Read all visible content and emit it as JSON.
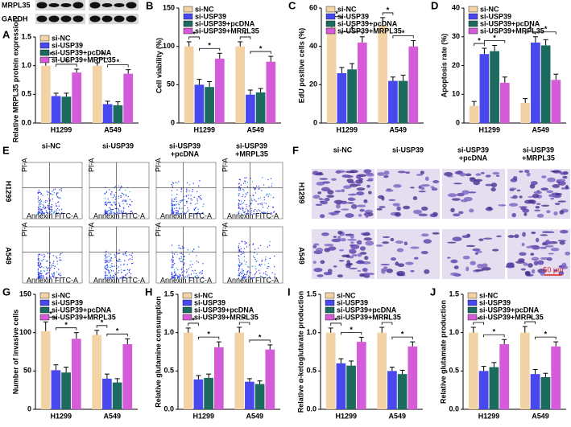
{
  "chart_data": [
    {
      "type": "bar",
      "panel": "A",
      "ylabel": "Relative MRPL35 protein expression",
      "categories": [
        "H1299",
        "A549"
      ],
      "series": [
        {
          "name": "si-NC",
          "color": "#f3d3a6",
          "values": [
            1.0,
            1.0
          ],
          "errors": [
            0.06,
            0.05
          ]
        },
        {
          "name": "si-USP39",
          "color": "#4848ee",
          "values": [
            0.47,
            0.33
          ],
          "errors": [
            0.05,
            0.05
          ]
        },
        {
          "name": "si-USP39+pcDNA",
          "color": "#1d6b5f",
          "values": [
            0.46,
            0.31
          ],
          "errors": [
            0.06,
            0.06
          ]
        },
        {
          "name": "si-USP39+MRPL35",
          "color": "#d45cd9",
          "values": [
            0.88,
            0.86
          ],
          "errors": [
            0.06,
            0.07
          ]
        }
      ],
      "ylim": [
        0,
        1.5
      ],
      "yticks": [
        {
          "value": 0,
          "label": "0.0"
        },
        {
          "value": 0.5,
          "label": "0.5"
        },
        {
          "value": 1,
          "label": "1.0"
        },
        {
          "value": 1.5,
          "label": "1.5"
        }
      ],
      "annotations": [
        "*",
        "*",
        "*",
        "*"
      ]
    },
    {
      "type": "bar",
      "panel": "B",
      "ylabel": "Cell viability (%)",
      "categories": [
        "H1299",
        "A549"
      ],
      "series": [
        {
          "name": "si-NC",
          "color": "#f3d3a6",
          "values": [
            100,
            100
          ],
          "errors": [
            6,
            6
          ]
        },
        {
          "name": "si-USP39",
          "color": "#4848ee",
          "values": [
            50,
            37
          ],
          "errors": [
            7,
            6
          ]
        },
        {
          "name": "si-USP39+pcDNA",
          "color": "#1d6b5f",
          "values": [
            47,
            40
          ],
          "errors": [
            7,
            5
          ]
        },
        {
          "name": "si-USP39+MRPL35",
          "color": "#d45cd9",
          "values": [
            84,
            80
          ],
          "errors": [
            7,
            7
          ]
        }
      ],
      "ylim": [
        0,
        150
      ],
      "yticks": [
        0,
        50,
        100,
        150
      ],
      "annotations": [
        "*",
        "*",
        "*",
        "*"
      ]
    },
    {
      "type": "bar",
      "panel": "C",
      "ylabel": "EdU positive cells (%)",
      "categories": [
        "H1299",
        "A549"
      ],
      "series": [
        {
          "name": "si-NC",
          "color": "#f3d3a6",
          "values": [
            50,
            51
          ],
          "errors": [
            3,
            4
          ]
        },
        {
          "name": "si-USP39",
          "color": "#4848ee",
          "values": [
            26,
            22
          ],
          "errors": [
            3,
            2
          ]
        },
        {
          "name": "si-USP39+pcDNA",
          "color": "#1d6b5f",
          "values": [
            28,
            22
          ],
          "errors": [
            3,
            3
          ]
        },
        {
          "name": "si-USP39+MRPL35",
          "color": "#d45cd9",
          "values": [
            42,
            40
          ],
          "errors": [
            3,
            3
          ]
        }
      ],
      "ylim": [
        0,
        60
      ],
      "yticks": [
        0,
        20,
        40,
        60
      ],
      "annotations": [
        "*",
        "*",
        "*",
        "*"
      ]
    },
    {
      "type": "bar",
      "panel": "D",
      "ylabel": "Apoptosis rate (%)",
      "categories": [
        "H1299",
        "A549"
      ],
      "series": [
        {
          "name": "si-NC",
          "color": "#f3d3a6",
          "values": [
            6,
            7
          ],
          "errors": [
            1.5,
            1.5
          ]
        },
        {
          "name": "si-USP39",
          "color": "#4848ee",
          "values": [
            24,
            28
          ],
          "errors": [
            2,
            2
          ]
        },
        {
          "name": "si-USP39+pcDNA",
          "color": "#1d6b5f",
          "values": [
            25,
            27
          ],
          "errors": [
            2,
            2
          ]
        },
        {
          "name": "si-USP39+MRPL35",
          "color": "#d45cd9",
          "values": [
            14,
            15
          ],
          "errors": [
            2,
            2
          ]
        }
      ],
      "ylim": [
        0,
        40
      ],
      "yticks": [
        0,
        10,
        20,
        30,
        40
      ],
      "annotations": [
        "*",
        "*",
        "*",
        "*"
      ]
    },
    {
      "type": "bar",
      "panel": "G",
      "ylabel": "Number of invasive cells",
      "categories": [
        "H1299",
        "A549"
      ],
      "series": [
        {
          "name": "si-NC",
          "color": "#f3d3a6",
          "values": [
            102,
            97
          ],
          "errors": [
            12,
            6
          ]
        },
        {
          "name": "si-USP39",
          "color": "#4848ee",
          "values": [
            51,
            40
          ],
          "errors": [
            7,
            6
          ]
        },
        {
          "name": "si-USP39+pcDNA",
          "color": "#1d6b5f",
          "values": [
            48,
            35
          ],
          "errors": [
            7,
            5
          ]
        },
        {
          "name": "si-USP39+MRPL35",
          "color": "#d45cd9",
          "values": [
            92,
            85
          ],
          "errors": [
            8,
            7
          ]
        }
      ],
      "ylim": [
        0,
        150
      ],
      "yticks": [
        0,
        50,
        100,
        150
      ],
      "annotations": [
        "*",
        "*",
        "*",
        "*"
      ]
    },
    {
      "type": "bar",
      "panel": "H",
      "ylabel": "Relative glutamine consumption",
      "categories": [
        "H1299",
        "A549"
      ],
      "series": [
        {
          "name": "si-NC",
          "color": "#f3d3a6",
          "values": [
            1.0,
            1.0
          ],
          "errors": [
            0.06,
            0.07
          ]
        },
        {
          "name": "si-USP39",
          "color": "#4848ee",
          "values": [
            0.39,
            0.36
          ],
          "errors": [
            0.05,
            0.04
          ]
        },
        {
          "name": "si-USP39+pcDNA",
          "color": "#1d6b5f",
          "values": [
            0.41,
            0.33
          ],
          "errors": [
            0.05,
            0.04
          ]
        },
        {
          "name": "si-USP39+MRPL35",
          "color": "#d45cd9",
          "values": [
            0.81,
            0.78
          ],
          "errors": [
            0.07,
            0.06
          ]
        }
      ],
      "ylim": [
        0,
        1.5
      ],
      "yticks": [
        {
          "value": 0,
          "label": "0.0"
        },
        {
          "value": 0.5,
          "label": "0.5"
        },
        {
          "value": 1,
          "label": "1.0"
        },
        {
          "value": 1.5,
          "label": "1.5"
        }
      ],
      "annotations": [
        "*",
        "*",
        "*",
        "*"
      ]
    },
    {
      "type": "bar",
      "panel": "I",
      "ylabel": "Relative α-ketoglutarate production",
      "categories": [
        "H1299",
        "A549"
      ],
      "series": [
        {
          "name": "si-NC",
          "color": "#f3d3a6",
          "values": [
            1.0,
            1.0
          ],
          "errors": [
            0.06,
            0.07
          ]
        },
        {
          "name": "si-USP39",
          "color": "#4848ee",
          "values": [
            0.6,
            0.5
          ],
          "errors": [
            0.06,
            0.05
          ]
        },
        {
          "name": "si-USP39+pcDNA",
          "color": "#1d6b5f",
          "values": [
            0.57,
            0.46
          ],
          "errors": [
            0.06,
            0.05
          ]
        },
        {
          "name": "si-USP39+MRPL35",
          "color": "#d45cd9",
          "values": [
            0.88,
            0.82
          ],
          "errors": [
            0.06,
            0.06
          ]
        }
      ],
      "ylim": [
        0,
        1.5
      ],
      "yticks": [
        {
          "value": 0,
          "label": "0.0"
        },
        {
          "value": 0.5,
          "label": "0.5"
        },
        {
          "value": 1,
          "label": "1.0"
        },
        {
          "value": 1.5,
          "label": "1.5"
        }
      ],
      "annotations": [
        "*",
        "*",
        "*",
        "*"
      ]
    },
    {
      "type": "bar",
      "panel": "J",
      "ylabel": "Relative glutamate production",
      "categories": [
        "H1299",
        "A549"
      ],
      "series": [
        {
          "name": "si-NC",
          "color": "#f3d3a6",
          "values": [
            1.0,
            1.0
          ],
          "errors": [
            0.07,
            0.08
          ]
        },
        {
          "name": "si-USP39",
          "color": "#4848ee",
          "values": [
            0.5,
            0.46
          ],
          "errors": [
            0.06,
            0.06
          ]
        },
        {
          "name": "si-USP39+pcDNA",
          "color": "#1d6b5f",
          "values": [
            0.55,
            0.42
          ],
          "errors": [
            0.06,
            0.05
          ]
        },
        {
          "name": "si-USP39+MRPL35",
          "color": "#d45cd9",
          "values": [
            0.85,
            0.82
          ],
          "errors": [
            0.06,
            0.06
          ]
        }
      ],
      "ylim": [
        0,
        1.5
      ],
      "yticks": [
        {
          "value": 0,
          "label": "0.0"
        },
        {
          "value": 0.5,
          "label": "0.5"
        },
        {
          "value": 1,
          "label": "1.0"
        },
        {
          "value": 1.5,
          "label": "1.5"
        }
      ],
      "annotations": [
        "*",
        "*",
        "*",
        "*"
      ]
    }
  ],
  "blot": {
    "labels": [
      "MRPL35",
      "GAPDH"
    ]
  },
  "flow": {
    "panel": "E",
    "columns": [
      [
        "si-NC"
      ],
      [
        "si-USP39"
      ],
      [
        "si-USP39",
        "+pcDNA"
      ],
      [
        "si-USP39",
        "+MRPL35"
      ]
    ],
    "rows": [
      "H1299",
      "A549"
    ],
    "x_axis": "Annexin FITC-A",
    "y_axis": "PI-A"
  },
  "invasion": {
    "panel": "F",
    "columns": [
      [
        "si-NC"
      ],
      [
        "si-USP39"
      ],
      [
        "si-USP39",
        "+pcDNA"
      ],
      [
        "si-USP39",
        "+MRPL35"
      ]
    ],
    "rows": [
      "H1299",
      "A549"
    ],
    "scale_bar": "50 μm"
  }
}
